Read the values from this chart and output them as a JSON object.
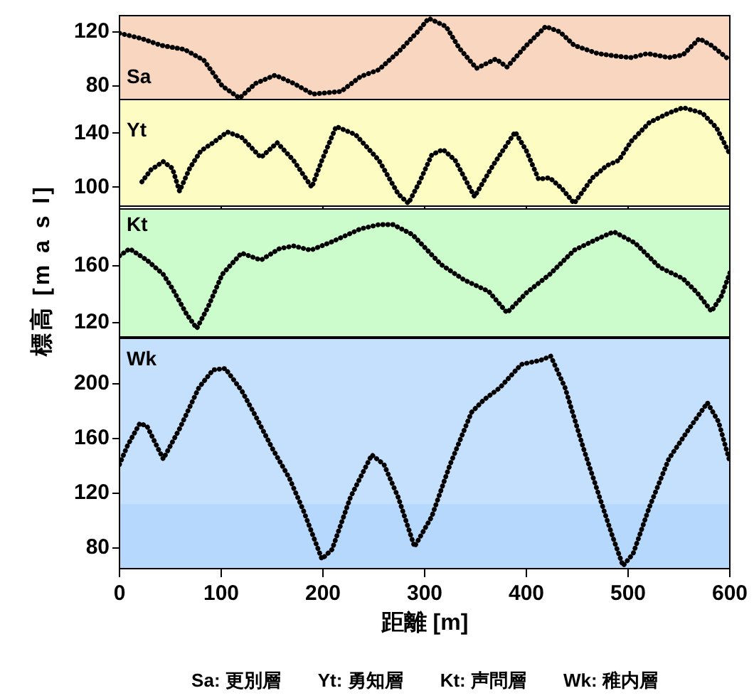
{
  "chart_data": [
    {
      "type": "line",
      "annotations": [
        "Sa"
      ],
      "line_style": "dotted",
      "marker": "none",
      "xlim": [
        0,
        600
      ],
      "xticks": [
        0,
        100,
        200,
        300,
        400,
        500,
        600
      ],
      "ylim": [
        70,
        132
      ],
      "yticks": [
        80,
        120
      ],
      "tick_labels": "y",
      "bands": [
        {
          "axis": "y",
          "from": 70,
          "to": 132,
          "color": "#f9d6bf"
        }
      ],
      "series": [
        {
          "color": "#000000",
          "x": [
            0,
            22,
            41,
            64,
            83,
            101,
            118,
            134,
            153,
            171,
            190,
            218,
            237,
            255,
            274,
            293,
            304,
            321,
            334,
            351,
            370,
            381,
            400,
            419,
            433,
            447,
            470,
            489,
            503,
            519,
            540,
            554,
            570,
            582,
            600
          ],
          "values": [
            119,
            115,
            110,
            107,
            99,
            80,
            71,
            82,
            88,
            82,
            74,
            76,
            87,
            92,
            105,
            120,
            130,
            124,
            108,
            93,
            100,
            94,
            110,
            124,
            120,
            110,
            104,
            102,
            101,
            104,
            101,
            103,
            115,
            110,
            99
          ]
        }
      ]
    },
    {
      "type": "line",
      "annotations": [
        "Yt"
      ],
      "line_style": "dotted",
      "marker": "none",
      "xlim": [
        0,
        600
      ],
      "xticks": [
        0,
        100,
        200,
        300,
        400,
        500,
        600
      ],
      "ylim": [
        86,
        165
      ],
      "yticks": [
        100,
        140
      ],
      "tick_labels": "y",
      "bands": [
        {
          "axis": "y",
          "from": 86,
          "to": 165,
          "color": "#fdfdc3"
        }
      ],
      "series": [
        {
          "color": "#000000",
          "x": [
            22,
            31,
            43,
            52,
            59,
            69,
            80,
            92,
            106,
            120,
            139,
            155,
            171,
            189,
            199,
            213,
            232,
            255,
            274,
            284,
            295,
            307,
            318,
            330,
            349,
            367,
            389,
            400,
            412,
            423,
            435,
            447,
            465,
            479,
            491,
            503,
            521,
            540,
            554,
            573,
            587,
            599
          ],
          "values": [
            104,
            113,
            119,
            114,
            97,
            114,
            127,
            133,
            141,
            137,
            122,
            133,
            120,
            100,
            120,
            145,
            139,
            120,
            95,
            88,
            104,
            124,
            128,
            120,
            93,
            116,
            141,
            127,
            106,
            107,
            99,
            88,
            107,
            116,
            120,
            134,
            148,
            155,
            159,
            155,
            144,
            126
          ]
        }
      ]
    },
    {
      "type": "line",
      "annotations": [
        "Kt"
      ],
      "line_style": "dotted",
      "marker": "none",
      "xlim": [
        0,
        600
      ],
      "xticks": [
        0,
        100,
        200,
        300,
        400,
        500,
        600
      ],
      "ylim": [
        110,
        200
      ],
      "yticks": [
        120,
        160
      ],
      "tick_labels": "y",
      "bands": [
        {
          "axis": "y",
          "from": 110,
          "to": 200,
          "color": "#ccfbcc"
        }
      ],
      "series": [
        {
          "color": "#000000",
          "x": [
            0,
            10,
            27,
            43,
            52,
            66,
            76,
            87,
            101,
            120,
            139,
            157,
            171,
            188,
            209,
            237,
            255,
            269,
            288,
            316,
            339,
            363,
            381,
            400,
            423,
            447,
            470,
            486,
            507,
            531,
            554,
            568,
            582,
            592,
            600
          ],
          "values": [
            167,
            172,
            164,
            154,
            144,
            126,
            116,
            131,
            154,
            169,
            164,
            172,
            174,
            171,
            177,
            186,
            189,
            189,
            182,
            161,
            150,
            142,
            127,
            141,
            154,
            171,
            179,
            184,
            176,
            159,
            151,
            141,
            128,
            139,
            155
          ]
        }
      ]
    },
    {
      "type": "line",
      "annotations": [
        "Wk",
        "Sa: 更別層　　Yt: 勇知層　　Kt: 声問層　　Wk: 稚内層"
      ],
      "line_style": "dotted",
      "marker": "none",
      "xlabel": "距離 [m]",
      "ylabel": "標高 [m a s l]",
      "xlim": [
        0,
        600
      ],
      "xticks": [
        0,
        100,
        200,
        300,
        400,
        500,
        600
      ],
      "ylim": [
        65,
        233
      ],
      "yticks": [
        80,
        120,
        160,
        200
      ],
      "bands": [
        {
          "axis": "y",
          "from": 65,
          "to": 233,
          "color": "#c4e0fd"
        },
        {
          "axis": "y",
          "from": 65,
          "to": 112,
          "color": "#b5d8fc"
        }
      ],
      "series": [
        {
          "color": "#000000",
          "x": [
            0,
            8,
            20,
            27,
            43,
            59,
            78,
            92,
            104,
            120,
            134,
            150,
            167,
            181,
            199,
            209,
            227,
            248,
            260,
            274,
            290,
            307,
            325,
            346,
            358,
            374,
            395,
            414,
            424,
            438,
            456,
            472,
            484,
            495,
            505,
            521,
            540,
            559,
            578,
            589,
            600
          ],
          "values": [
            141,
            155,
            171,
            169,
            145,
            167,
            197,
            210,
            211,
            195,
            176,
            153,
            131,
            107,
            72,
            79,
            117,
            148,
            141,
            117,
            81,
            103,
            141,
            179,
            188,
            197,
            214,
            217,
            220,
            197,
            153,
            117,
            90,
            67,
            76,
            110,
            145,
            166,
            186,
            172,
            143
          ]
        }
      ]
    }
  ]
}
